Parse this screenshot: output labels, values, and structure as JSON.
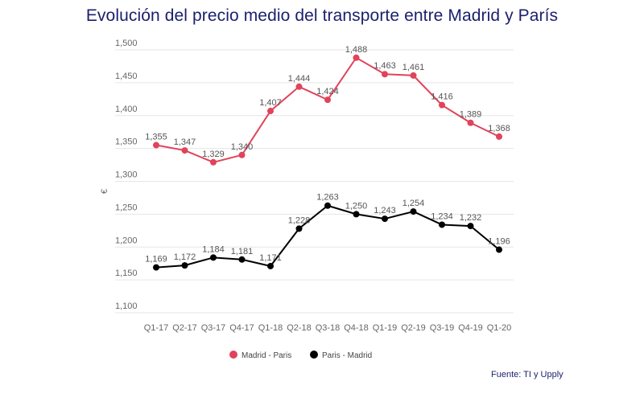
{
  "chart_data": {
    "type": "line",
    "title": "Evolución del precio medio del transporte entre Madrid y París",
    "xlabel": "",
    "ylabel": "€",
    "categories": [
      "Q1-17",
      "Q2-17",
      "Q3-17",
      "Q4-17",
      "Q1-18",
      "Q2-18",
      "Q3-18",
      "Q4-18",
      "Q1-19",
      "Q2-19",
      "Q3-19",
      "Q4-19",
      "Q1-20"
    ],
    "ylim": [
      1100,
      1500
    ],
    "yticks": [
      1100,
      1150,
      1200,
      1250,
      1300,
      1350,
      1400,
      1450,
      1500
    ],
    "ytick_labels": [
      "1,100",
      "1,150",
      "1,200",
      "1,250",
      "1,300",
      "1,350",
      "1,400",
      "1,450",
      "1,500"
    ],
    "grid": true,
    "legend_position": "bottom",
    "series": [
      {
        "name": "Madrid - Paris",
        "color": "#e0435a",
        "values": [
          1355,
          1347,
          1329,
          1340,
          1407,
          1444,
          1424,
          1488,
          1463,
          1461,
          1416,
          1389,
          1368
        ],
        "labels": [
          "1,355",
          "1,347",
          "1,329",
          "1,340",
          "1,407",
          "1,444",
          "1,424",
          "1,488",
          "1,463",
          "1,461",
          "1,416",
          "1,389",
          "1,368"
        ]
      },
      {
        "name": "Paris - Madrid",
        "color": "#000000",
        "values": [
          1169,
          1172,
          1184,
          1181,
          1171,
          1228,
          1263,
          1250,
          1243,
          1254,
          1234,
          1232,
          1196
        ],
        "labels": [
          "1,169",
          "1,172",
          "1,184",
          "1,181",
          "1,171",
          "1,228",
          "1,263",
          "1,250",
          "1,243",
          "1,254",
          "1,234",
          "1,232",
          "1,196"
        ]
      }
    ]
  },
  "source": "Fuente: TI y Upply"
}
